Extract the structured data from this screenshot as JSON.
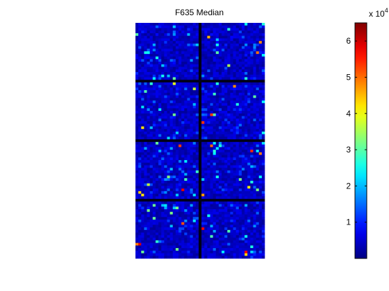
{
  "chart_data": {
    "type": "heatmap",
    "title": "F635 Median",
    "colormap": "jet",
    "color_min": 0,
    "color_max": 65000,
    "colorbar": {
      "ticks": [
        1,
        2,
        3,
        4,
        5,
        6
      ],
      "tick_labels": [
        "1",
        "2",
        "3",
        "4",
        "5",
        "6"
      ],
      "multiplier_base": "x 10",
      "multiplier_exp": "4"
    },
    "grid": {
      "block_rows": 4,
      "block_cols": 2,
      "spots_per_block_rows": 22,
      "spots_per_block_cols": 22,
      "background_level": 4000
    }
  }
}
